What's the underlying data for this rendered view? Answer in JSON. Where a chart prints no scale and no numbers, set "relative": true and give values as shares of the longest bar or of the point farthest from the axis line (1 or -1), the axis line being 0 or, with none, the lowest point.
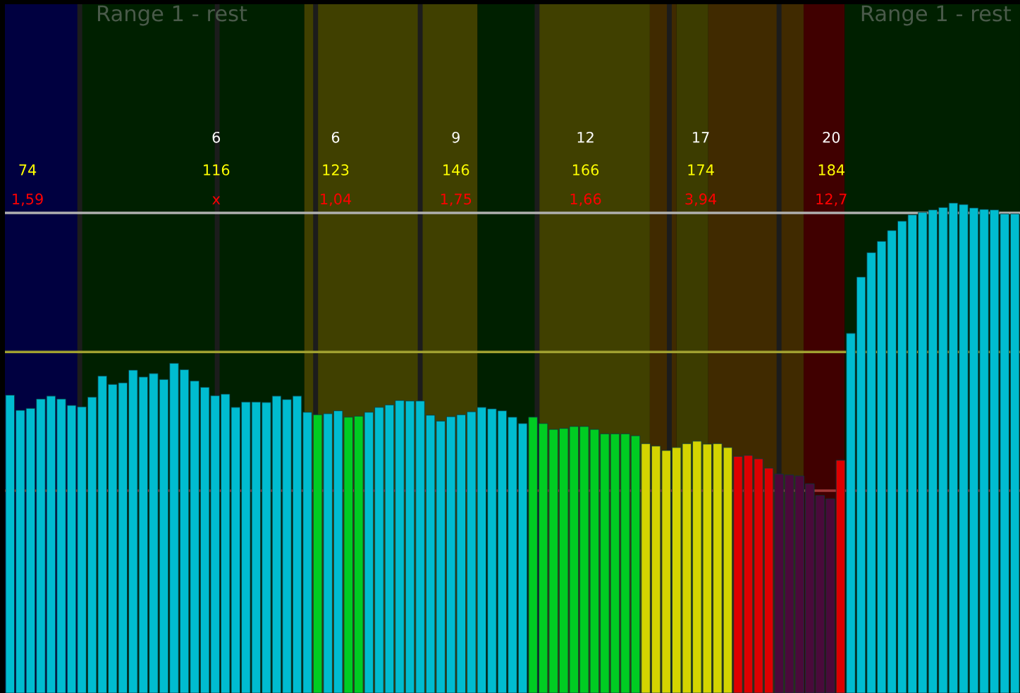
{
  "chart_data": {
    "type": "bar",
    "relative": true,
    "categories": [
      null,
      null,
      null,
      null,
      null,
      null,
      null,
      null,
      null,
      null,
      null,
      null,
      null,
      null,
      null,
      null,
      null,
      null,
      null,
      null,
      null,
      null,
      null,
      null,
      null,
      null,
      null,
      null,
      null,
      null,
      null,
      null,
      null,
      null,
      null,
      null,
      null,
      null,
      null,
      null,
      null,
      null,
      null,
      null,
      null,
      null,
      null,
      null,
      null,
      null,
      null,
      null,
      null,
      null,
      null,
      null,
      null,
      null,
      null,
      null,
      null,
      null,
      null,
      null,
      null,
      null,
      null,
      null,
      null,
      null,
      null,
      null,
      null,
      null,
      null,
      null,
      null,
      null,
      null,
      null,
      null,
      null,
      null,
      null,
      null,
      null,
      null,
      null,
      null,
      null,
      null,
      null,
      null,
      null,
      null,
      null,
      null,
      null,
      null
    ],
    "values": [
      0.608,
      0.577,
      0.581,
      0.6,
      0.606,
      0.6,
      0.587,
      0.584,
      0.604,
      0.647,
      0.63,
      0.633,
      0.659,
      0.645,
      0.652,
      0.64,
      0.673,
      0.66,
      0.637,
      0.624,
      0.607,
      0.61,
      0.583,
      0.594,
      0.594,
      0.593,
      0.606,
      0.599,
      0.606,
      0.573,
      0.568,
      0.57,
      0.576,
      0.563,
      0.565,
      0.573,
      0.583,
      0.588,
      0.597,
      0.596,
      0.596,
      0.567,
      0.555,
      0.564,
      0.568,
      0.574,
      0.583,
      0.58,
      0.576,
      0.563,
      0.55,
      0.563,
      0.55,
      0.538,
      0.54,
      0.544,
      0.544,
      0.538,
      0.529,
      0.529,
      0.529,
      0.525,
      0.509,
      0.504,
      0.495,
      0.501,
      0.509,
      0.514,
      0.508,
      0.509,
      0.501,
      0.483,
      0.485,
      0.478,
      0.459,
      0.447,
      0.445,
      0.443,
      0.427,
      0.403,
      0.396,
      0.475,
      0.734,
      0.849,
      0.899,
      0.922,
      0.944,
      0.963,
      0.976,
      0.981,
      0.986,
      0.991,
      1.0,
      0.997,
      0.99,
      0.987,
      0.986,
      0.978,
      0.978
    ],
    "colors": [
      "#00bcd0",
      "#00bcd0",
      "#00bcd0",
      "#00bcd0",
      "#00bcd0",
      "#00bcd0",
      "#00bcd0",
      "#00bcd0",
      "#00bcd0",
      "#00bcd0",
      "#00bcd0",
      "#00bcd0",
      "#00bcd0",
      "#00bcd0",
      "#00bcd0",
      "#00bcd0",
      "#00bcd0",
      "#00bcd0",
      "#00bcd0",
      "#00bcd0",
      "#00bcd0",
      "#00bcd0",
      "#00bcd0",
      "#00bcd0",
      "#00bcd0",
      "#00bcd0",
      "#00bcd0",
      "#00bcd0",
      "#00bcd0",
      "#00bcd0",
      "#00cc22",
      "#00bcd0",
      "#00bcd0",
      "#00cc22",
      "#00cc22",
      "#00bcd0",
      "#00bcd0",
      "#00bcd0",
      "#00bcd0",
      "#00bcd0",
      "#00bcd0",
      "#00bcd0",
      "#00bcd0",
      "#00bcd0",
      "#00bcd0",
      "#00bcd0",
      "#00bcd0",
      "#00bcd0",
      "#00bcd0",
      "#00bcd0",
      "#00bcd0",
      "#00cc22",
      "#00cc22",
      "#00cc22",
      "#00cc22",
      "#00cc22",
      "#00cc22",
      "#00cc22",
      "#00cc22",
      "#00cc22",
      "#00cc22",
      "#00cc22",
      "#d4d400",
      "#d4d400",
      "#d4d400",
      "#d4d400",
      "#d4d400",
      "#d4d400",
      "#d4d400",
      "#d4d400",
      "#d4d400",
      "#dd0000",
      "#dd0000",
      "#dd0000",
      "#dd0000",
      "#4a0a3a",
      "#4a0a3a",
      "#4a0a3a",
      "#4a0a3a",
      "#4a0a3a",
      "#4a0a3a",
      "#dd0000",
      "#00bcd0",
      "#00bcd0",
      "#00bcd0",
      "#00bcd0",
      "#00bcd0",
      "#00bcd0",
      "#00bcd0",
      "#00bcd0",
      "#00bcd0",
      "#00bcd0",
      "#00bcd0",
      "#00bcd0",
      "#00bcd0",
      "#00bcd0",
      "#00bcd0",
      "#00bcd0",
      "#00bcd0"
    ],
    "ref_lines": [
      {
        "axis": "y",
        "value": 0.98,
        "color": "#b0b0b0"
      },
      {
        "axis": "y",
        "value": 0.696,
        "color": "#a0a030"
      },
      {
        "axis": "y",
        "value": 0.413,
        "color": "#a03838"
      }
    ],
    "annotations": [
      "Range 1 - rest",
      "Range 1 - rest",
      "74",
      "1,59",
      "6",
      "116",
      "x",
      "6",
      "123",
      "1,04",
      "9",
      "146",
      "1,75",
      "12",
      "166",
      "1,66",
      "17",
      "174",
      "3,94",
      "20",
      "184",
      "12,7"
    ]
  }
}
